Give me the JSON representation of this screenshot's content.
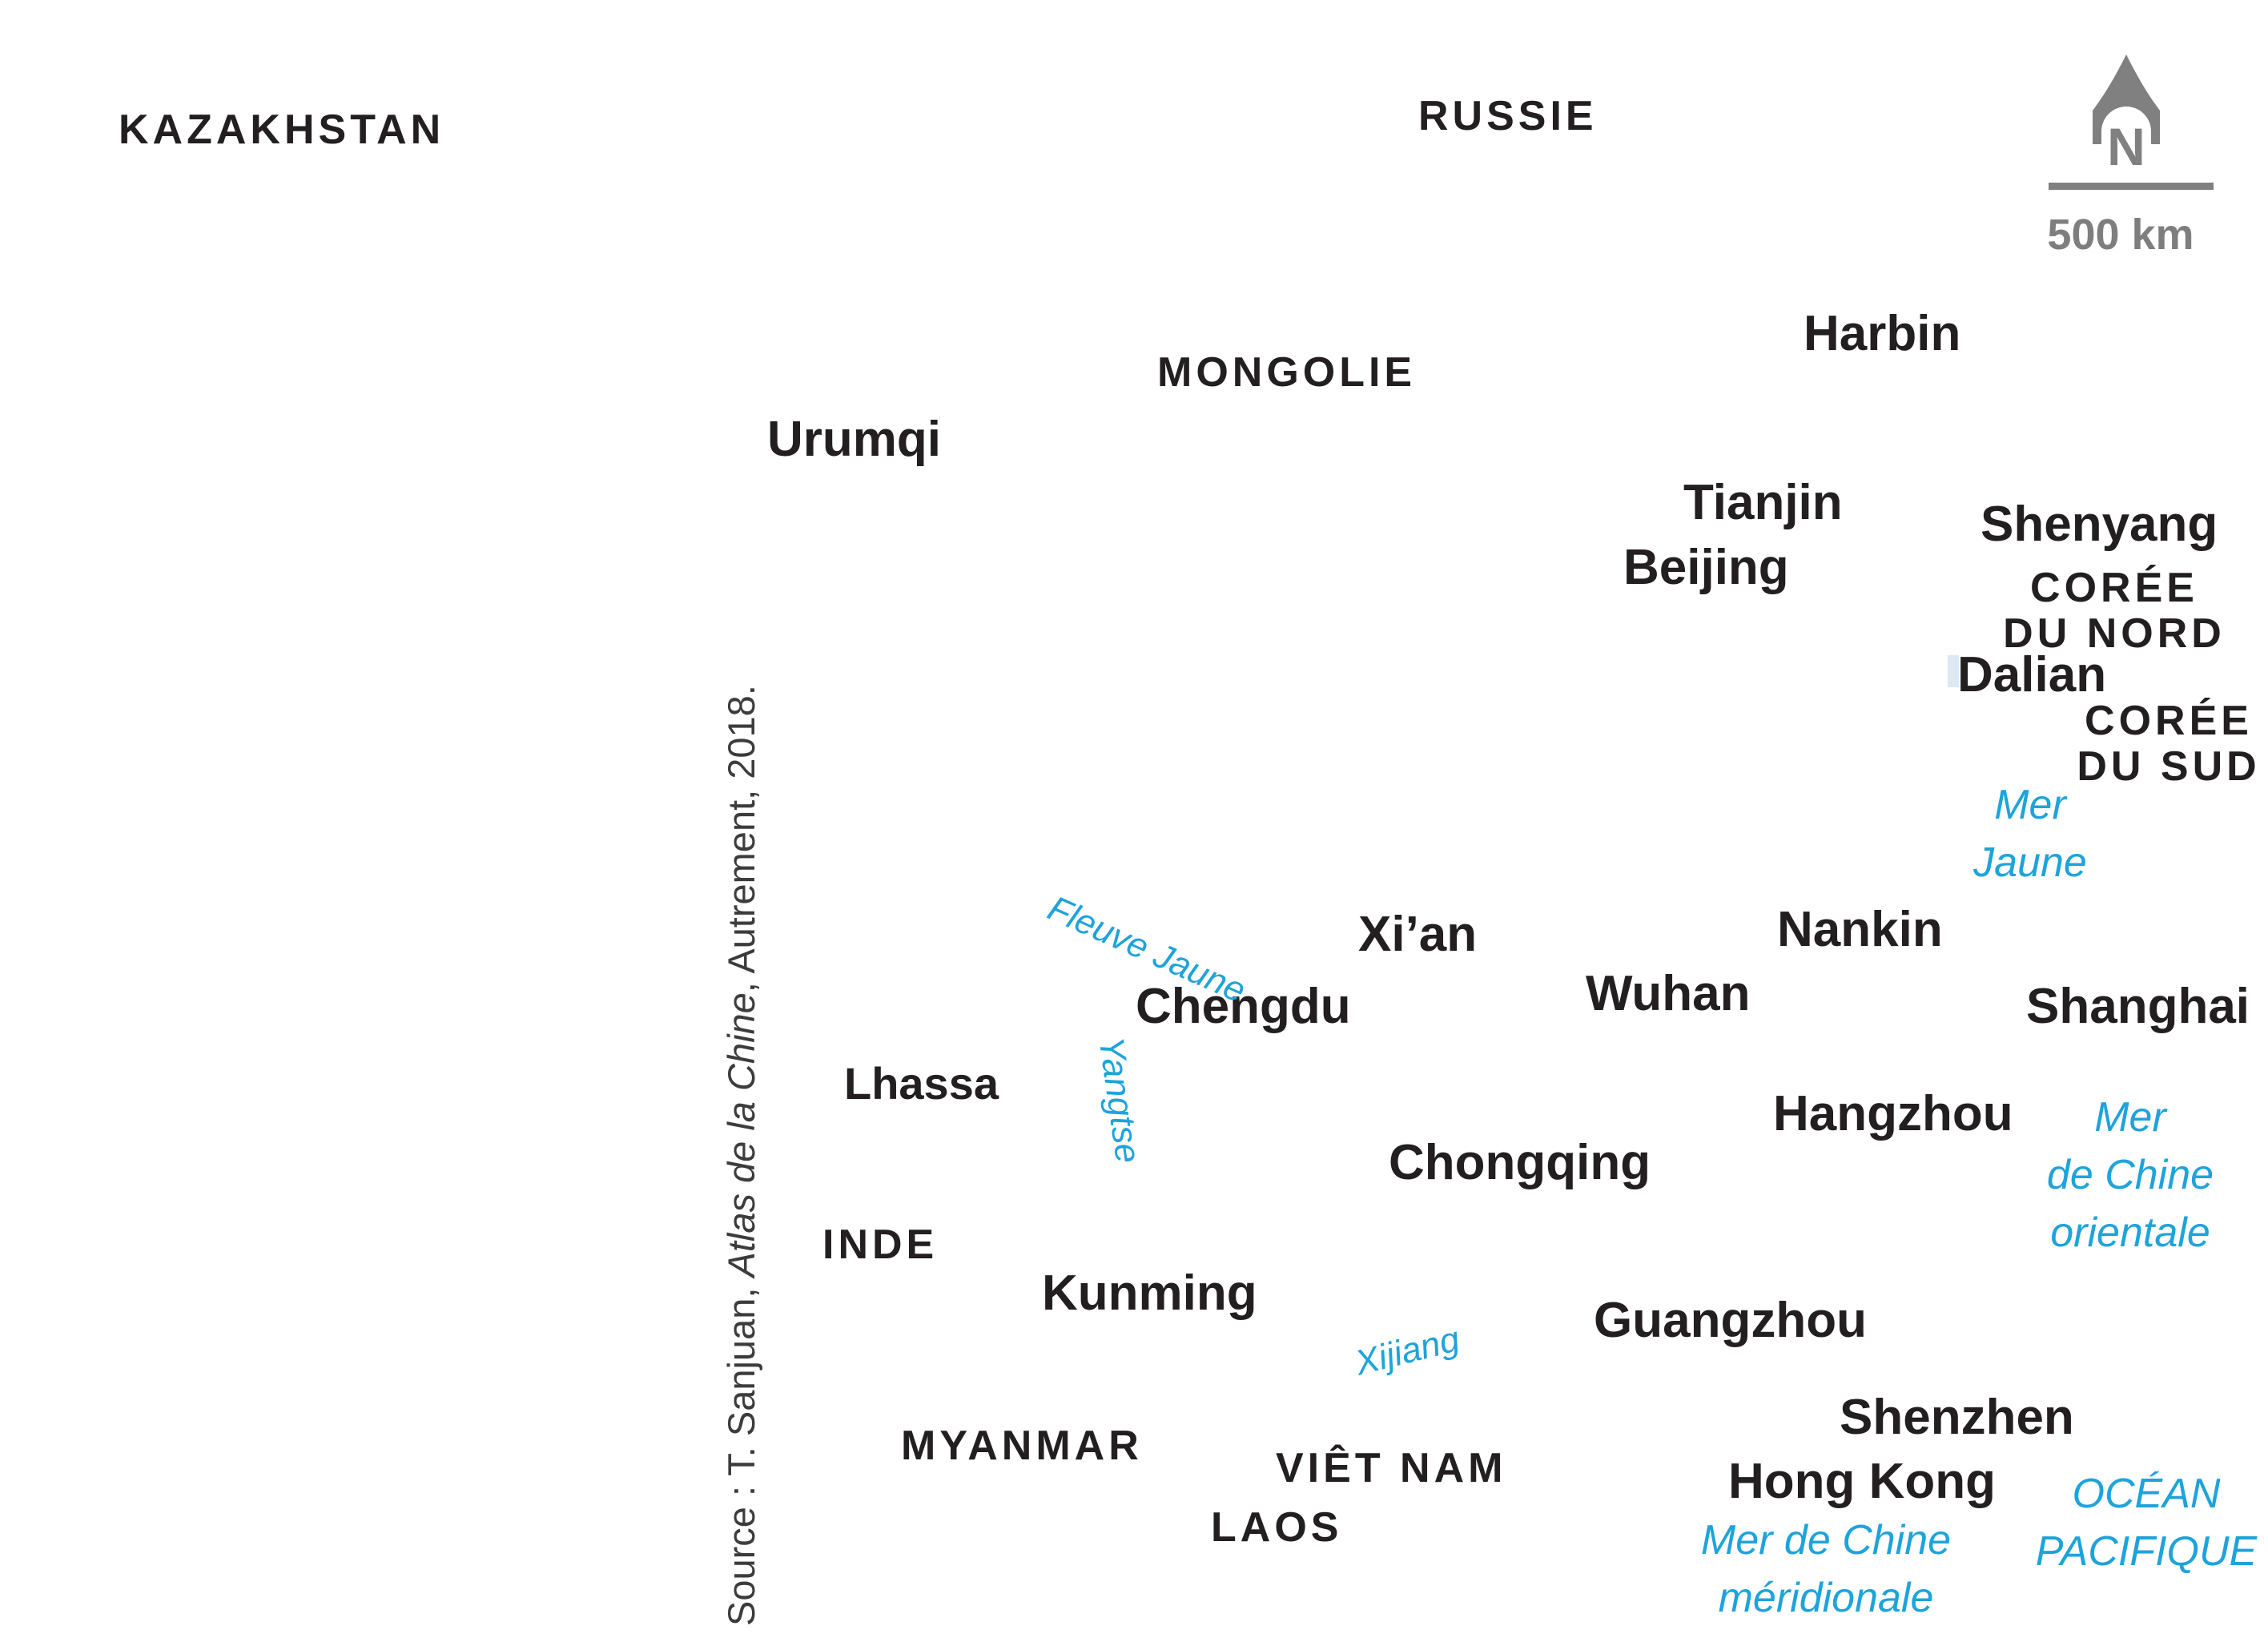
{
  "countries": {
    "kazakhstan": "KAZAKHSTAN",
    "russie": "RUSSIE",
    "mongolie": "MONGOLIE",
    "coree_nord_1": "CORÉE",
    "coree_nord_2": "DU NORD",
    "coree_sud_1": "CORÉE",
    "coree_sud_2": "DU SUD",
    "inde": "INDE",
    "myanmar": "MYANMAR",
    "vietnam": "VIÊT NAM",
    "laos": "LAOS"
  },
  "cities": {
    "harbin": "Harbin",
    "urumqi": "Urumqi",
    "tianjin": "Tianjin",
    "beijing": "Beijing",
    "shenyang": "Shenyang",
    "dalian": "Dalian",
    "xian": "Xi’an",
    "nankin": "Nankin",
    "chengdu": "Chengdu",
    "wuhan": "Wuhan",
    "shanghai": "Shanghai",
    "lhassa": "Lhassa",
    "hangzhou": "Hangzhou",
    "chongqing": "Chongqing",
    "kunming": "Kunming",
    "guangzhou": "Guangzhou",
    "shenzhen": "Shenzhen",
    "hongkong": "Hong Kong"
  },
  "waters": {
    "mer_jaune_1": "Mer",
    "mer_jaune_2": "Jaune",
    "mer_chine_orientale_1": "Mer",
    "mer_chine_orientale_2": "de Chine",
    "mer_chine_orientale_3": "orientale",
    "mer_chine_meridionale_1": "Mer de Chine",
    "mer_chine_meridionale_2": "méridionale",
    "ocean_pacifique_1": "OCÉAN",
    "ocean_pacifique_2": "PACIFIQUE"
  },
  "rivers": {
    "fleuve_jaune": "Fleuve Jaune",
    "yangtse": "Yangtse",
    "xijiang": "Xijiang"
  },
  "source": {
    "prefix": "Source : T. Sanjuan, ",
    "title": "Atlas de la Chine",
    "suffix": ", Autrement, 2018."
  },
  "north_arrow": {
    "letter": "N"
  },
  "scale": {
    "label": "500 km"
  },
  "colors": {
    "text": "#231f20",
    "water": "#1ea3db",
    "legend": "#7e7e7e"
  }
}
